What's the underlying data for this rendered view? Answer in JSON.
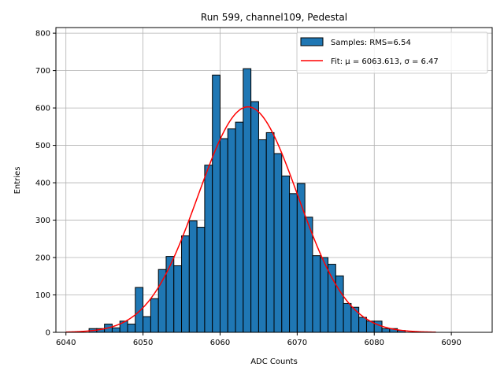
{
  "chart_data": {
    "type": "bar",
    "title": "Run 599, channel109, Pedestal",
    "xlabel": "ADC Counts",
    "ylabel": "Entries",
    "xlim": [
      6038.7,
      6095.3
    ],
    "ylim": [
      0,
      815
    ],
    "grid": true,
    "xticks": [
      6040,
      6050,
      6060,
      6070,
      6080,
      6090
    ],
    "yticks": [
      0,
      100,
      200,
      300,
      400,
      500,
      600,
      700,
      800
    ],
    "bin_width": 1,
    "bins": [
      [
        6043,
        10
      ],
      [
        6044,
        10
      ],
      [
        6045,
        22
      ],
      [
        6046,
        12
      ],
      [
        6047,
        30
      ],
      [
        6048,
        22
      ],
      [
        6049,
        120
      ],
      [
        6050,
        42
      ],
      [
        6051,
        90
      ],
      [
        6052,
        168
      ],
      [
        6053,
        203
      ],
      [
        6054,
        178
      ],
      [
        6055,
        258
      ],
      [
        6056,
        298
      ],
      [
        6057,
        281
      ],
      [
        6058,
        447
      ],
      [
        6059,
        688
      ],
      [
        6060,
        518
      ],
      [
        6061,
        544
      ],
      [
        6062,
        562
      ],
      [
        6063,
        705
      ],
      [
        6064,
        617
      ],
      [
        6065,
        515
      ],
      [
        6066,
        534
      ],
      [
        6067,
        478
      ],
      [
        6068,
        418
      ],
      [
        6069,
        371
      ],
      [
        6070,
        398
      ],
      [
        6071,
        308
      ],
      [
        6072,
        205
      ],
      [
        6073,
        200
      ],
      [
        6074,
        182
      ],
      [
        6075,
        151
      ],
      [
        6076,
        77
      ],
      [
        6077,
        67
      ],
      [
        6078,
        40
      ],
      [
        6079,
        30
      ],
      [
        6080,
        30
      ],
      [
        6081,
        10
      ],
      [
        6082,
        10
      ],
      [
        6083,
        5
      ]
    ],
    "fit": {
      "mu": 6063.613,
      "sigma": 6.47,
      "amplitude": 603,
      "x_range": [
        6040,
        6088
      ]
    },
    "legend": {
      "position": "upper-right",
      "entries": [
        {
          "name": "Samples: RMS=6.54",
          "kind": "bar",
          "color": "#1f77b4"
        },
        {
          "name": "Fit: μ = 6063.613, σ = 6.47",
          "kind": "line",
          "color": "#ff0000"
        }
      ]
    },
    "colors": {
      "bar_fill": "#1f77b4",
      "bar_edge": "#000000",
      "fit_line": "#ff0000",
      "grid": "#b0b0b0"
    }
  }
}
